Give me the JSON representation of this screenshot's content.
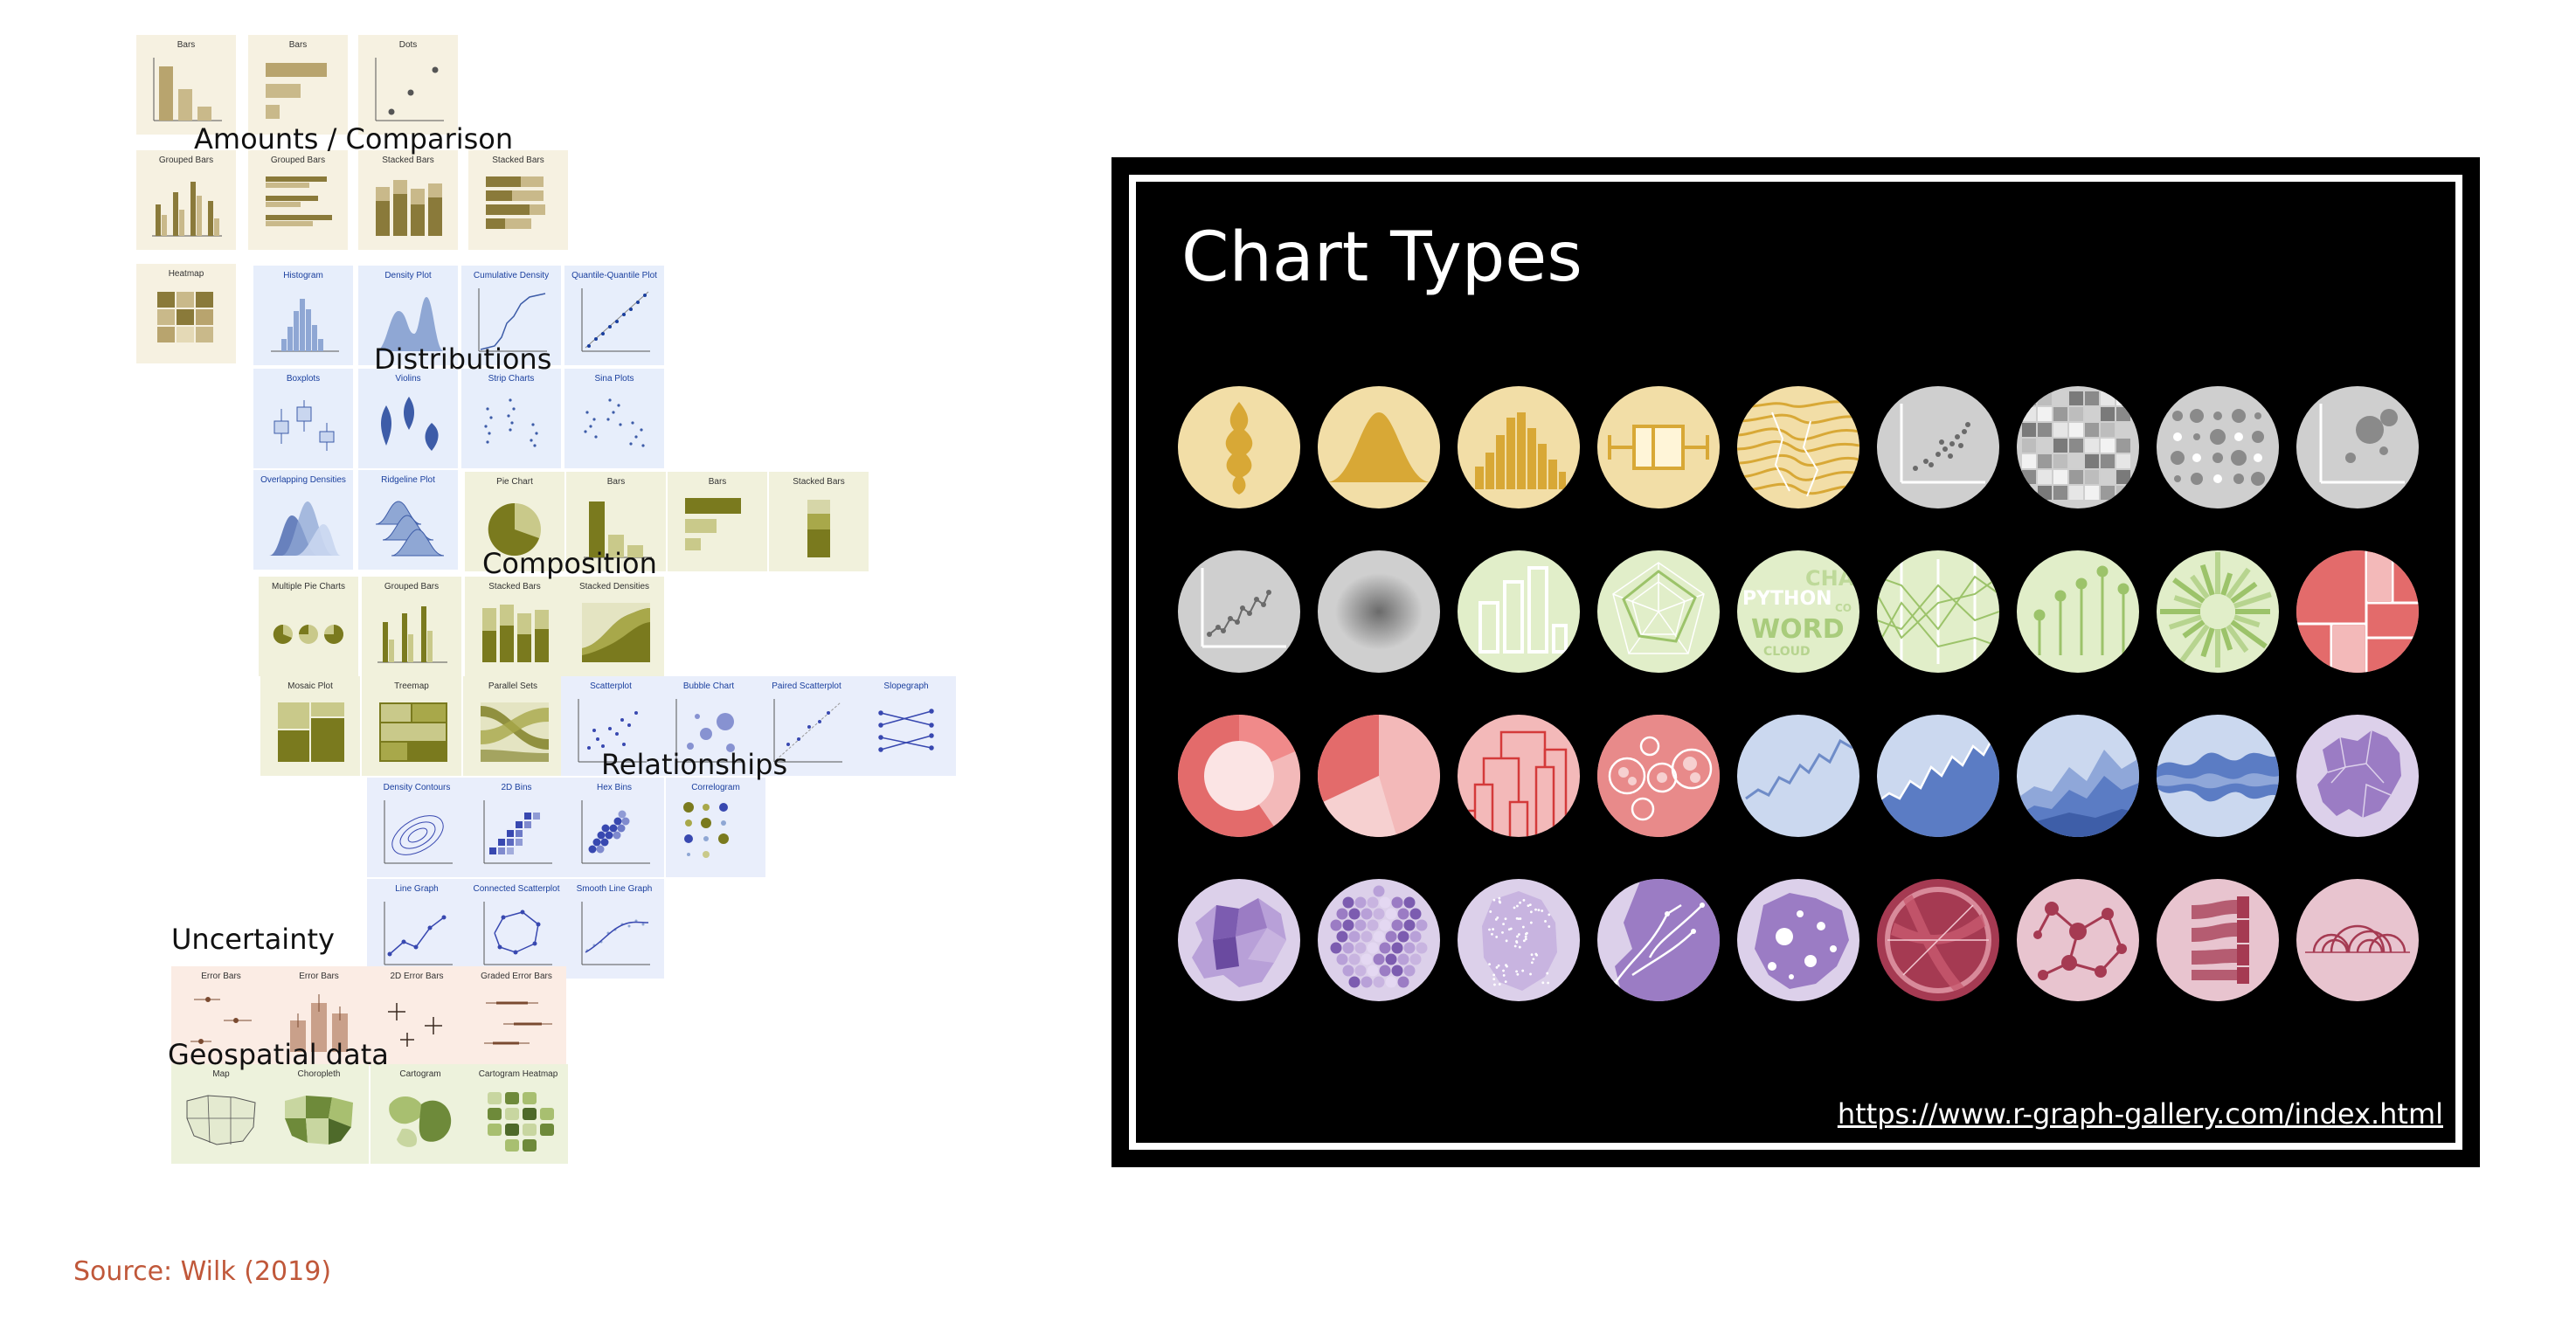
{
  "categories": {
    "amounts": "Amounts / Comparison",
    "distributions": "Distributions",
    "composition": "Composition",
    "relationships": "Relationships",
    "uncertainty": "Uncertainty",
    "geospatial": "Geospatial data"
  },
  "tiles": {
    "bars_v": "Bars",
    "bars_h": "Bars",
    "dots": "Dots",
    "grouped_bars_v": "Grouped Bars",
    "grouped_bars_h": "Grouped Bars",
    "stacked_bars_v": "Stacked Bars",
    "stacked_bars_h": "Stacked Bars",
    "heatmap": "Heatmap",
    "histogram": "Histogram",
    "density_plot": "Density Plot",
    "cumulative_density": "Cumulative Density",
    "qq_plot": "Quantile-Quantile Plot",
    "boxplots": "Boxplots",
    "violins": "Violins",
    "strip_charts": "Strip Charts",
    "sina_plots": "Sina Plots",
    "overlapping_densities": "Overlapping Densities",
    "ridgeline_plot": "Ridgeline Plot",
    "pie_chart": "Pie Chart",
    "comp_bars_v": "Bars",
    "comp_bars_h": "Bars",
    "comp_stacked_bars": "Stacked Bars",
    "multiple_pie_charts": "Multiple Pie Charts",
    "comp_grouped_bars": "Grouped Bars",
    "comp_stacked_bars_2": "Stacked Bars",
    "stacked_densities": "Stacked Densities",
    "mosaic_plot": "Mosaic Plot",
    "treemap": "Treemap",
    "parallel_sets": "Parallel Sets",
    "scatterplot": "Scatterplot",
    "bubble_chart": "Bubble Chart",
    "paired_scatterplot": "Paired Scatterplot",
    "slopegraph": "Slopegraph",
    "density_contours": "Density Contours",
    "bins_2d": "2D Bins",
    "hex_bins": "Hex Bins",
    "correlogram": "Correlogram",
    "line_graph": "Line Graph",
    "connected_scatterplot": "Connected Scatterplot",
    "smooth_line_graph": "Smooth Line Graph",
    "error_bars_1": "Error Bars",
    "error_bars_2": "Error Bars",
    "error_bars_2d": "2D Error Bars",
    "graded_error_bars": "Graded Error Bars",
    "map": "Map",
    "choropleth": "Choropleth",
    "cartogram": "Cartogram",
    "cartogram_heatmap": "Cartogram Heatmap"
  },
  "source": "Source: Wilk (2019)",
  "panel": {
    "title": "Chart Types",
    "link": "https://www.r-graph-gallery.com/index.html"
  },
  "colors": {
    "amounts_bg": "#f6f1e1",
    "amounts_fg": "#b8a46e",
    "distributions_bg": "#e7eefb",
    "distributions_fg": "#6d8cc4",
    "composition_bg": "#f1f1dc",
    "composition_fg": "#7a7a1e",
    "relationships_fg": "#3848b0",
    "uncertainty_bg": "#fbece4",
    "geo_bg": "#edf2dc",
    "source_text": "#c0583a",
    "panel_bg": "#000000",
    "circle_yellow": "#f2dea7",
    "circle_gray": "#cfcfcf",
    "circle_green": "#e1eec9",
    "circle_red": "#f3b9b9",
    "circle_blue": "#cbd8ef",
    "circle_purple": "#dcd0ea",
    "circle_maroon": "#a53a52"
  }
}
